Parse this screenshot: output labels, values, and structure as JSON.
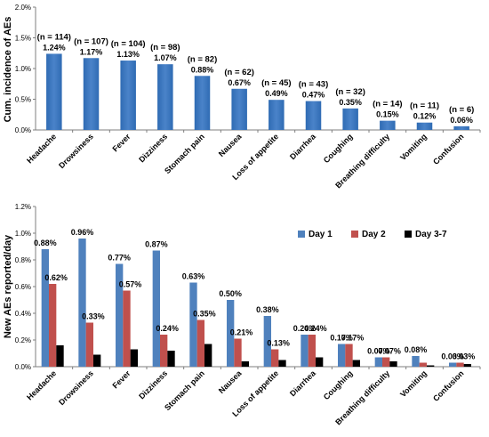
{
  "colors": {
    "top_bar": "#4a83c9",
    "day1": "#4f81bd",
    "day2": "#c0504d",
    "day37": "#000000",
    "axis": "#7f7f7f"
  },
  "chart_data": [
    {
      "type": "bar",
      "categories": [
        "Headache",
        "Drowsiness",
        "Fever",
        "Dizziness",
        "Stomach pain",
        "Nausea",
        "Loss of appetite",
        "Diarrhea",
        "Coughing",
        "Breathing difficulty",
        "Vomiting",
        "Confusion"
      ],
      "values": [
        1.24,
        1.17,
        1.13,
        1.07,
        0.88,
        0.67,
        0.49,
        0.47,
        0.35,
        0.15,
        0.12,
        0.06
      ],
      "value_labels": [
        "1.24%",
        "1.17%",
        "1.13%",
        "1.07%",
        "0.88%",
        "0.67%",
        "0.49%",
        "0.47%",
        "0.35%",
        "0.15%",
        "0.12%",
        "0.06%"
      ],
      "n_labels": [
        "(n = 114)",
        "(n = 107)",
        "(n = 104)",
        "(n = 98)",
        "(n = 82)",
        "(n = 62)",
        "(n = 45)",
        "(n = 43)",
        "(n = 32)",
        "(n = 14)",
        "(n = 11)",
        "(n = 6)"
      ],
      "ylabel": "Cum. incidence of AEs",
      "ylim": [
        0,
        2.0
      ],
      "yticks": [
        0,
        0.5,
        1.0,
        1.5,
        2.0
      ],
      "ytick_labels": [
        "0.0%",
        "0.5%",
        "1.0%",
        "1.5%",
        "2.0%"
      ],
      "grid": false
    },
    {
      "type": "bar",
      "categories": [
        "Headache",
        "Drowsiness",
        "Fever",
        "Dizziness",
        "Stomach pain",
        "Nausea",
        "Loss of appetite",
        "Diarrhea",
        "Coughing",
        "Breathing difficulty",
        "Vomiting",
        "Confusion"
      ],
      "series": [
        {
          "name": "Day 1",
          "values": [
            0.88,
            0.96,
            0.77,
            0.87,
            0.63,
            0.5,
            0.38,
            0.24,
            0.17,
            0.07,
            0.08,
            0.03
          ]
        },
        {
          "name": "Day 2",
          "values": [
            0.62,
            0.33,
            0.57,
            0.24,
            0.35,
            0.21,
            0.13,
            0.24,
            0.17,
            0.07,
            0.03,
            0.03
          ]
        },
        {
          "name": "Day 3-7",
          "values": [
            0.16,
            0.09,
            0.13,
            0.12,
            0.17,
            0.04,
            0.05,
            0.07,
            0.05,
            0.04,
            0.01,
            0.02
          ]
        }
      ],
      "labels_day1": [
        "0.88%",
        "0.96%",
        "0.77%",
        "0.87%",
        "0.63%",
        "0.50%",
        "0.38%",
        "0.24%",
        "0.17%",
        "0.07%",
        "0.08%",
        "0.03%"
      ],
      "labels_day2": [
        "0.62%",
        "0.33%",
        "0.57%",
        "0.24%",
        "0.35%",
        "0.21%",
        "0.13%",
        "0.24%",
        "0.17%",
        "0.07%",
        "",
        "0.03%"
      ],
      "ylabel": "New AEs reported/day",
      "ylim": [
        0,
        1.2
      ],
      "yticks": [
        0,
        0.2,
        0.4,
        0.6,
        0.8,
        1.0,
        1.2
      ],
      "ytick_labels": [
        "0.0%",
        "0.2%",
        "0.4%",
        "0.6%",
        "0.8%",
        "1.0%",
        "1.2%"
      ],
      "legend": "top-right",
      "grid": false
    }
  ]
}
